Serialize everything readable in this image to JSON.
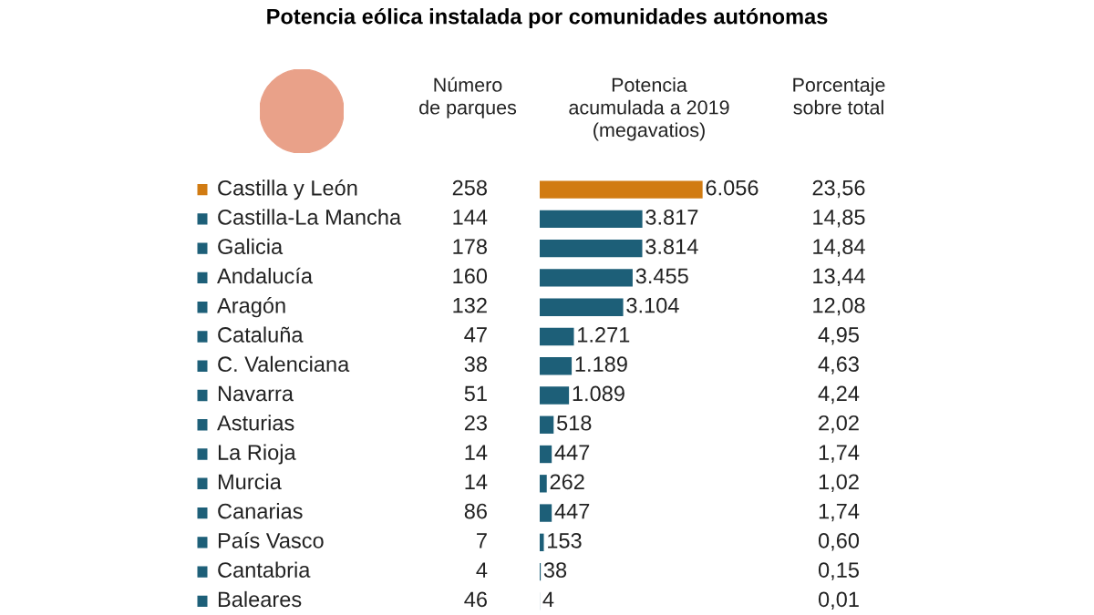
{
  "chart_data": {
    "type": "bar",
    "orientation": "horizontal",
    "title": "Potencia eólica instalada por comunidades autónomas",
    "categories": [
      "Castilla y León",
      "Castilla-La Mancha",
      "Galicia",
      "Andalucía",
      "Aragón",
      "Cataluña",
      "C. Valenciana",
      "Navarra",
      "Asturias",
      "La Rioja",
      "Murcia",
      "Canarias",
      "País Vasco",
      "Cantabria",
      "Baleares"
    ],
    "values": [
      6056,
      3817,
      3814,
      3455,
      3104,
      1271,
      1189,
      1089,
      518,
      447,
      262,
      447,
      153,
      38,
      4
    ],
    "value_labels": [
      "6.056",
      "3.817",
      "3.814",
      "3.455",
      "3.104",
      "1.271",
      "1.189",
      "1.089",
      "518",
      "447",
      "262",
      "447",
      "153",
      "38",
      "4"
    ],
    "colors": [
      "#d17b12",
      "#1d5f78",
      "#1d5f78",
      "#1d5f78",
      "#1d5f78",
      "#1d5f78",
      "#1d5f78",
      "#1d5f78",
      "#1d5f78",
      "#1d5f78",
      "#1d5f78",
      "#1d5f78",
      "#1d5f78",
      "#1d5f78",
      "#1d5f78"
    ],
    "annotations": [
      "Número\nde parques",
      "Potencia\nacumulada a 2019\n(megavatios)",
      "Porcentaje\nsobre total",
      "258",
      "144",
      "178",
      "160",
      "132",
      "47",
      "38",
      "51",
      "23",
      "14",
      "14",
      "86",
      "7",
      "4",
      "46",
      "23,56",
      "14,85",
      "14,84",
      "13,44",
      "12,08",
      "4,95",
      "4,63",
      "4,24",
      "2,02",
      "1,74",
      "1,02",
      "1,74",
      "0,60",
      "0,15",
      "0,01"
    ]
  }
}
